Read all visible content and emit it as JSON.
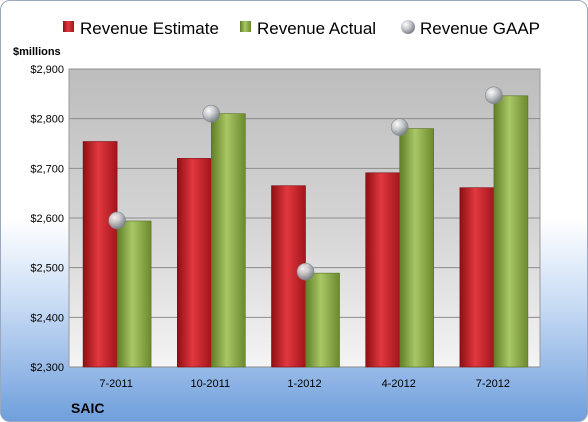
{
  "chart_data": {
    "type": "bar",
    "unit_label": "$millions",
    "company": "SAIC",
    "categories": [
      "7-2011",
      "10-2011",
      "1-2012",
      "4-2012",
      "7-2012"
    ],
    "ylim": [
      2300,
      2900
    ],
    "yticks": [
      2300,
      2400,
      2500,
      2600,
      2700,
      2800,
      2900
    ],
    "ytick_labels": [
      "$2,300",
      "$2,400",
      "$2,500",
      "$2,600",
      "$2,700",
      "$2,800",
      "$2,900"
    ],
    "grid": true,
    "legend_position": "top",
    "series": [
      {
        "name": "Revenue Estimate",
        "kind": "bar",
        "color": "#c8202a",
        "values": [
          2754,
          2720,
          2665,
          2691,
          2661
        ]
      },
      {
        "name": "Revenue Actual",
        "kind": "bar",
        "color": "#8fae48",
        "values": [
          2594,
          2810,
          2489,
          2780,
          2846
        ]
      },
      {
        "name": "Revenue GAAP",
        "kind": "marker",
        "color": "#b8bcc2",
        "values": [
          2595,
          2810,
          2492,
          2783,
          2847
        ]
      }
    ]
  }
}
